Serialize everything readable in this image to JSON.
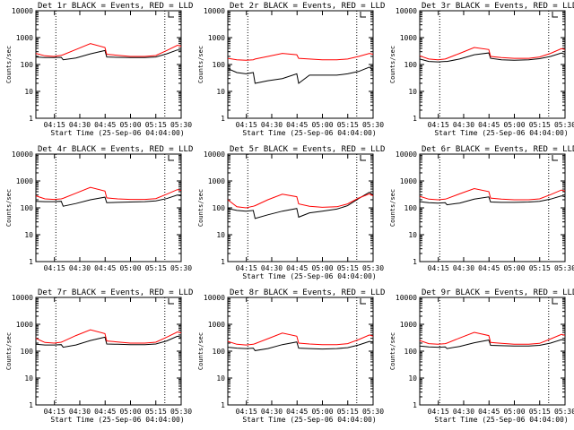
{
  "chart_data": [
    {
      "type": "line",
      "title": "Det 1r BLACK = Events, RED = LLD",
      "xlabel": "Start Time (25-Sep-06 04:04:00)",
      "ylabel": "Counts/sec",
      "yscale": "log",
      "ylim": [
        1,
        10000
      ],
      "x_ticks": [
        "04:15",
        "04:30",
        "04:45",
        "05:00",
        "05:15",
        "05:30"
      ],
      "y_ticks": [
        "1",
        "10",
        "100",
        "1000",
        "10000"
      ],
      "series": [
        {
          "color": "#000000",
          "x": [
            0,
            5,
            10,
            14,
            15,
            22,
            30,
            38,
            39,
            45,
            52,
            60,
            66,
            72,
            78,
            80
          ],
          "y": [
            190,
            180,
            180,
            185,
            150,
            175,
            250,
            330,
            190,
            185,
            180,
            180,
            190,
            250,
            350,
            340
          ]
        },
        {
          "color": "#ff0000",
          "x": [
            0,
            5,
            10,
            14,
            15,
            22,
            30,
            38,
            39,
            45,
            52,
            60,
            66,
            72,
            78,
            80
          ],
          "y": [
            260,
            210,
            200,
            220,
            230,
            360,
            600,
            430,
            240,
            220,
            200,
            200,
            215,
            330,
            520,
            480
          ]
        }
      ]
    },
    {
      "type": "line",
      "title": "Det 2r BLACK = Events, RED = LLD",
      "xlabel": "Start Time (25-Sep-06 04:04:00)",
      "ylabel": "Counts/sec",
      "yscale": "log",
      "ylim": [
        1,
        10000
      ],
      "x_ticks": [
        "04:15",
        "04:30",
        "04:45",
        "05:00",
        "05:15",
        "05:30"
      ],
      "y_ticks": [
        "1",
        "10",
        "100",
        "1000",
        "10000"
      ],
      "series": [
        {
          "color": "#000000",
          "x": [
            0,
            5,
            10,
            14,
            15,
            22,
            30,
            38,
            39,
            45,
            52,
            60,
            66,
            72,
            78,
            80
          ],
          "y": [
            70,
            50,
            45,
            50,
            20,
            25,
            30,
            45,
            20,
            40,
            40,
            40,
            45,
            55,
            80,
            60
          ]
        },
        {
          "color": "#ff0000",
          "x": [
            0,
            5,
            10,
            14,
            15,
            22,
            30,
            38,
            39,
            45,
            52,
            60,
            66,
            72,
            78,
            80
          ],
          "y": [
            170,
            150,
            145,
            150,
            160,
            200,
            260,
            230,
            170,
            160,
            150,
            150,
            160,
            200,
            260,
            240
          ]
        }
      ]
    },
    {
      "type": "line",
      "title": "Det 3r BLACK = Events, RED = LLD",
      "xlabel": "Start Time (25-Sep-06 04:04:00)",
      "ylabel": "Counts/sec",
      "yscale": "log",
      "ylim": [
        1,
        10000
      ],
      "x_ticks": [
        "04:15",
        "04:30",
        "04:45",
        "05:00",
        "05:15",
        "05:30"
      ],
      "y_ticks": [
        "1",
        "10",
        "100",
        "1000",
        "10000"
      ],
      "series": [
        {
          "color": "#000000",
          "x": [
            0,
            5,
            10,
            14,
            15,
            22,
            30,
            38,
            39,
            45,
            52,
            60,
            66,
            72,
            78,
            80
          ],
          "y": [
            160,
            130,
            125,
            130,
            130,
            160,
            230,
            270,
            170,
            150,
            145,
            150,
            165,
            200,
            270,
            240
          ]
        },
        {
          "color": "#ff0000",
          "x": [
            0,
            5,
            10,
            14,
            15,
            22,
            30,
            38,
            39,
            45,
            52,
            60,
            66,
            72,
            78,
            80
          ],
          "y": [
            210,
            160,
            150,
            160,
            170,
            260,
            430,
            360,
            200,
            180,
            170,
            170,
            190,
            260,
            390,
            360
          ]
        }
      ]
    },
    {
      "type": "line",
      "title": "Det 4r BLACK = Events, RED = LLD",
      "xlabel": "",
      "ylabel": "Counts/sec",
      "yscale": "log",
      "ylim": [
        1,
        10000
      ],
      "x_ticks": [
        "04:15",
        "04:30",
        "04:45",
        "05:00",
        "05:15",
        "05:30"
      ],
      "y_ticks": [
        "1",
        "10",
        "100",
        "1000",
        "10000"
      ],
      "series": [
        {
          "color": "#000000",
          "x": [
            0,
            5,
            10,
            14,
            15,
            22,
            30,
            38,
            39,
            45,
            52,
            60,
            66,
            72,
            78,
            80
          ],
          "y": [
            175,
            170,
            170,
            175,
            115,
            145,
            200,
            250,
            155,
            160,
            165,
            170,
            180,
            220,
            300,
            280
          ]
        },
        {
          "color": "#ff0000",
          "x": [
            0,
            5,
            10,
            14,
            15,
            22,
            30,
            38,
            39,
            45,
            52,
            60,
            66,
            72,
            78,
            80
          ],
          "y": [
            280,
            215,
            205,
            215,
            225,
            350,
            580,
            420,
            235,
            215,
            205,
            205,
            220,
            320,
            480,
            440
          ]
        }
      ]
    },
    {
      "type": "line",
      "title": "Det 5r BLACK = Events, RED = LLD",
      "xlabel": "Start Time (25-Sep-06 04:04:00)",
      "ylabel": "Counts/sec",
      "yscale": "log",
      "ylim": [
        1,
        10000
      ],
      "x_ticks": [
        "04:15",
        "04:30",
        "04:45",
        "05:00",
        "05:15",
        "05:30"
      ],
      "y_ticks": [
        "1",
        "10",
        "100",
        "1000",
        "10000"
      ],
      "series": [
        {
          "color": "#000000",
          "x": [
            0,
            5,
            10,
            14,
            15,
            22,
            30,
            38,
            39,
            45,
            52,
            60,
            66,
            72,
            78,
            80
          ],
          "y": [
            95,
            80,
            75,
            80,
            40,
            55,
            75,
            95,
            45,
            65,
            75,
            90,
            120,
            220,
            380,
            300
          ]
        },
        {
          "color": "#ff0000",
          "x": [
            0,
            5,
            10,
            14,
            15,
            22,
            30,
            38,
            39,
            45,
            52,
            60,
            66,
            72,
            78,
            80
          ],
          "y": [
            200,
            110,
            100,
            115,
            120,
            200,
            320,
            260,
            140,
            115,
            105,
            110,
            140,
            230,
            330,
            280
          ]
        }
      ]
    },
    {
      "type": "line",
      "title": "Det 6r BLACK = Events, RED = LLD",
      "xlabel": "",
      "ylabel": "Counts/sec",
      "yscale": "log",
      "ylim": [
        1,
        10000
      ],
      "x_ticks": [
        "04:15",
        "04:30",
        "04:45",
        "05:00",
        "05:15",
        "05:30"
      ],
      "y_ticks": [
        "1",
        "10",
        "100",
        "1000",
        "10000"
      ],
      "series": [
        {
          "color": "#000000",
          "x": [
            0,
            5,
            10,
            14,
            15,
            22,
            30,
            38,
            39,
            45,
            52,
            60,
            66,
            72,
            78,
            80
          ],
          "y": [
            170,
            155,
            150,
            155,
            130,
            150,
            210,
            255,
            165,
            160,
            160,
            165,
            175,
            210,
            280,
            260
          ]
        },
        {
          "color": "#ff0000",
          "x": [
            0,
            5,
            10,
            14,
            15,
            22,
            30,
            38,
            39,
            45,
            52,
            60,
            66,
            72,
            78,
            80
          ],
          "y": [
            270,
            210,
            200,
            210,
            220,
            330,
            520,
            400,
            230,
            210,
            200,
            200,
            215,
            310,
            460,
            420
          ]
        }
      ]
    },
    {
      "type": "line",
      "title": "Det 7r BLACK = Events, RED = LLD",
      "xlabel": "Start Time (25-Sep-06 04:04:00)",
      "ylabel": "Counts/sec",
      "yscale": "log",
      "ylim": [
        1,
        10000
      ],
      "x_ticks": [
        "04:15",
        "04:30",
        "04:45",
        "05:00",
        "05:15",
        "05:30"
      ],
      "y_ticks": [
        "1",
        "10",
        "100",
        "1000",
        "10000"
      ],
      "series": [
        {
          "color": "#000000",
          "x": [
            0,
            5,
            10,
            14,
            15,
            22,
            30,
            38,
            39,
            45,
            52,
            60,
            66,
            72,
            78,
            80
          ],
          "y": [
            180,
            170,
            170,
            175,
            140,
            170,
            250,
            330,
            185,
            180,
            175,
            175,
            185,
            240,
            360,
            330
          ]
        },
        {
          "color": "#ff0000",
          "x": [
            0,
            5,
            10,
            14,
            15,
            22,
            30,
            38,
            39,
            45,
            52,
            60,
            66,
            72,
            78,
            80
          ],
          "y": [
            300,
            210,
            200,
            215,
            230,
            380,
            620,
            450,
            240,
            220,
            200,
            200,
            215,
            330,
            520,
            480
          ]
        }
      ]
    },
    {
      "type": "line",
      "title": "Det 8r BLACK = Events, RED = LLD",
      "xlabel": "Start Time (25-Sep-06 04:04:00)",
      "ylabel": "Counts/sec",
      "yscale": "log",
      "ylim": [
        1,
        10000
      ],
      "x_ticks": [
        "04:15",
        "04:30",
        "04:45",
        "05:00",
        "05:15",
        "05:30"
      ],
      "y_ticks": [
        "1",
        "10",
        "100",
        "1000",
        "10000"
      ],
      "series": [
        {
          "color": "#000000",
          "x": [
            0,
            5,
            10,
            14,
            15,
            22,
            30,
            38,
            39,
            45,
            52,
            60,
            66,
            72,
            78,
            80
          ],
          "y": [
            140,
            130,
            125,
            130,
            105,
            125,
            175,
            220,
            130,
            125,
            120,
            125,
            135,
            170,
            230,
            220
          ]
        },
        {
          "color": "#ff0000",
          "x": [
            0,
            5,
            10,
            14,
            15,
            22,
            30,
            38,
            39,
            45,
            52,
            60,
            66,
            72,
            78,
            80
          ],
          "y": [
            230,
            180,
            170,
            180,
            190,
            290,
            470,
            360,
            200,
            185,
            175,
            175,
            190,
            270,
            400,
            360
          ]
        }
      ]
    },
    {
      "type": "line",
      "title": "Det 9r BLACK = Events, RED = LLD",
      "xlabel": "Start Time (25-Sep-06 04:04:00)",
      "ylabel": "Counts/sec",
      "yscale": "log",
      "ylim": [
        1,
        10000
      ],
      "x_ticks": [
        "04:15",
        "04:30",
        "04:45",
        "05:00",
        "05:15",
        "05:30"
      ],
      "y_ticks": [
        "1",
        "10",
        "100",
        "1000",
        "10000"
      ],
      "series": [
        {
          "color": "#000000",
          "x": [
            0,
            5,
            10,
            14,
            15,
            22,
            30,
            38,
            39,
            45,
            52,
            60,
            66,
            72,
            78,
            80
          ],
          "y": [
            155,
            145,
            140,
            145,
            125,
            150,
            205,
            260,
            165,
            160,
            155,
            155,
            165,
            200,
            270,
            250
          ]
        },
        {
          "color": "#ff0000",
          "x": [
            0,
            5,
            10,
            14,
            15,
            22,
            30,
            38,
            39,
            45,
            52,
            60,
            66,
            72,
            78,
            80
          ],
          "y": [
            250,
            190,
            180,
            190,
            200,
            310,
            500,
            380,
            210,
            195,
            180,
            180,
            195,
            285,
            420,
            390
          ]
        }
      ]
    }
  ]
}
